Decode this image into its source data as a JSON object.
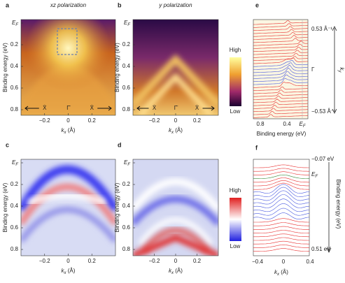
{
  "panels": {
    "a": {
      "letter": "a",
      "title": "xz polarization",
      "y_label": "Binding energy (eV)",
      "yticks": [
        {
          "main": "E",
          "sub": "F"
        },
        "0.2",
        "0.4",
        "0.6",
        "0.8"
      ],
      "xticks": [
        "−0.2",
        "0",
        "0.2"
      ],
      "x_label": {
        "main": "k",
        "sub": "x",
        "rest": " (Å)"
      },
      "annotations": [
        "X̄",
        "Γ̄",
        "X̄"
      ]
    },
    "b": {
      "letter": "b",
      "title": "y polarization",
      "y_label": "Binding energy (eV)",
      "yticks": [
        {
          "main": "E",
          "sub": "F"
        },
        "0.2",
        "0.4",
        "0.6",
        "0.8"
      ],
      "xticks": [
        "−0.2",
        "0",
        "0.2"
      ],
      "x_label": {
        "main": "k",
        "sub": "x",
        "rest": " (Å)"
      },
      "annotations": [
        "X̄",
        "Γ̄",
        "X̄"
      ]
    },
    "c": {
      "letter": "c",
      "y_label": "Binding energy (eV)",
      "yticks": [
        {
          "main": "E",
          "sub": "F"
        },
        "0.2",
        "0.4",
        "0.6",
        "0.8"
      ],
      "xticks": [
        "−0.2",
        "0",
        "0.2"
      ],
      "x_label": {
        "main": "k",
        "sub": "x",
        "rest": " (Å)"
      }
    },
    "d": {
      "letter": "d",
      "y_label": "Binding energy (eV)",
      "yticks": [
        {
          "main": "E",
          "sub": "F"
        },
        "0.2",
        "0.4",
        "0.6",
        "0.8"
      ],
      "xticks": [
        "−0.2",
        "0",
        "0.2"
      ],
      "x_label": {
        "main": "k",
        "sub": "x",
        "rest": " (Å)"
      }
    },
    "e": {
      "letter": "e",
      "xticks": [
        "0.8",
        "0.4",
        {
          "main": "E",
          "sub": "F"
        }
      ],
      "x_label": "Binding energy (eV)",
      "right_labels": [
        "0.53 Å⁻¹",
        "Γ",
        "−0.53 Å⁻¹"
      ],
      "axis_label": {
        "main": "k",
        "sub": "y"
      }
    },
    "f": {
      "letter": "f",
      "xticks": [
        "−0.4",
        "0",
        "0.4"
      ],
      "x_label": {
        "main": "k",
        "sub": "x",
        "rest": " (Å)"
      },
      "right_labels": [
        "−0.07 eV",
        {
          "main": "E",
          "sub": "F"
        },
        "0.51 eV"
      ],
      "axis_label": "Binding energy (eV)"
    }
  },
  "colorbars": [
    {
      "high": "High",
      "low": "Low"
    },
    {
      "high": "High",
      "low": "Low"
    }
  ]
}
